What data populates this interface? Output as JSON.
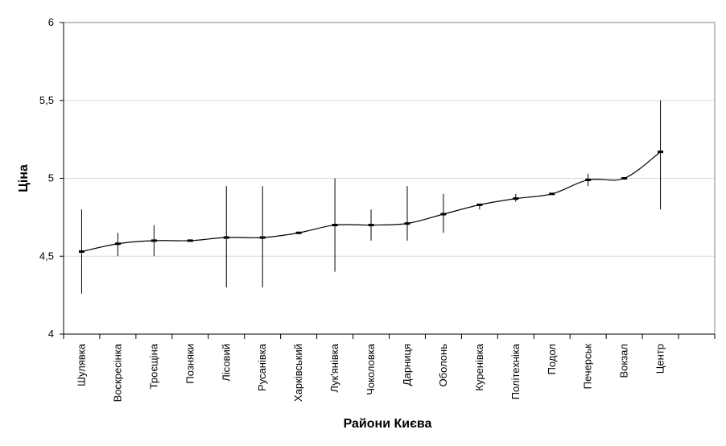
{
  "chart_data": {
    "type": "line",
    "xlabel": "Райони Києва",
    "ylabel": "Ціна",
    "ylim": [
      4,
      6
    ],
    "yticks": [
      4,
      4.5,
      5,
      5.5,
      6
    ],
    "ytick_labels": [
      "4",
      "4,5",
      "5",
      "5,5",
      "6"
    ],
    "grid": "horizontal",
    "categories": [
      "Шулявка",
      "Воскресінка",
      "Троєщіна",
      "Позняки",
      "Лісовий",
      "Русанівка",
      "Харківський",
      "Лук'янівка",
      "Чоколовка",
      "Дарниця",
      "Оболонь",
      "Куренівка",
      "Політехніка",
      "Подол",
      "Печерськ",
      "Вокзал",
      "Центр"
    ],
    "series": [
      {
        "values": [
          4.53,
          4.58,
          4.6,
          4.6,
          4.62,
          4.62,
          4.65,
          4.7,
          4.7,
          4.71,
          4.77,
          4.83,
          4.87,
          4.9,
          4.99,
          5.0,
          5.17
        ],
        "high": [
          4.8,
          4.65,
          4.7,
          4.6,
          4.95,
          4.95,
          4.65,
          5.0,
          4.8,
          4.95,
          4.9,
          4.83,
          4.9,
          4.9,
          5.03,
          5.0,
          5.5
        ],
        "low": [
          4.26,
          4.5,
          4.5,
          4.6,
          4.3,
          4.3,
          4.65,
          4.4,
          4.6,
          4.6,
          4.65,
          4.8,
          4.85,
          4.9,
          4.95,
          5.0,
          4.8
        ]
      }
    ],
    "colors": {
      "line": "#000000",
      "grid": "#d9d9d9",
      "axis": "#000000"
    }
  }
}
